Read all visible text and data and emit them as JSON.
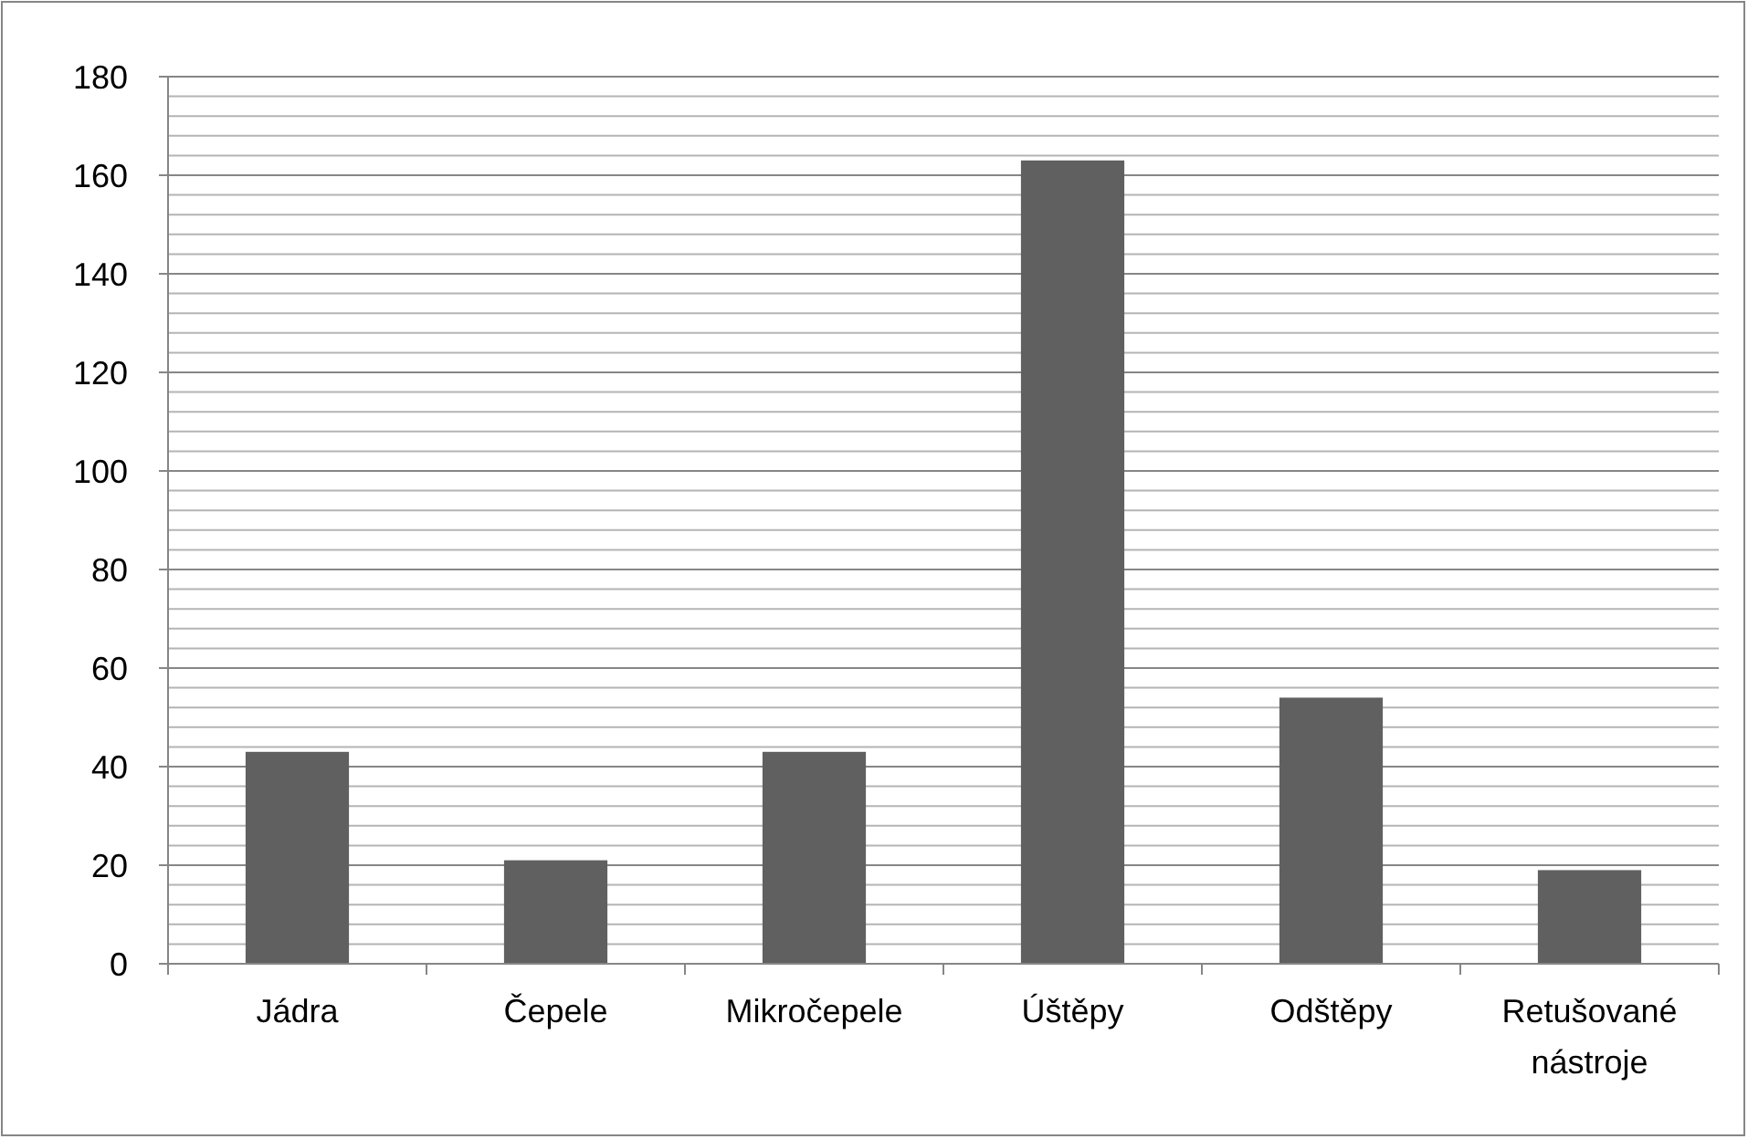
{
  "chart_data": {
    "type": "bar",
    "categories": [
      "Jádra",
      "Čepele",
      "Mikročepele",
      "Úštěpy",
      "Odštěpy",
      "Retušované nástroje"
    ],
    "values": [
      43,
      21,
      43,
      163,
      54,
      19
    ],
    "color": "#606060",
    "ylim": [
      0,
      180
    ],
    "yticks": [
      0,
      {
        "value": 4,
        "label": null
      },
      {
        "value": 8,
        "label": null
      },
      {
        "value": 12,
        "label": null
      },
      {
        "value": 16,
        "label": null
      },
      20,
      {
        "value": 24,
        "label": null
      },
      {
        "value": 28,
        "label": null
      },
      {
        "value": 32,
        "label": null
      },
      {
        "value": 36,
        "label": null
      },
      40,
      {
        "value": 44,
        "label": null
      },
      {
        "value": 48,
        "label": null
      },
      {
        "value": 52,
        "label": null
      },
      {
        "value": 56,
        "label": null
      },
      60,
      {
        "value": 64,
        "label": null
      },
      {
        "value": 68,
        "label": null
      },
      {
        "value": 72,
        "label": null
      },
      {
        "value": 76,
        "label": null
      },
      80,
      {
        "value": 84,
        "label": null
      },
      {
        "value": 88,
        "label": null
      },
      {
        "value": 92,
        "label": null
      },
      {
        "value": 96,
        "label": null
      },
      100,
      {
        "value": 104,
        "label": null
      },
      {
        "value": 108,
        "label": null
      },
      {
        "value": 112,
        "label": null
      },
      {
        "value": 116,
        "label": null
      },
      120,
      {
        "value": 124,
        "label": null
      },
      {
        "value": 128,
        "label": null
      },
      {
        "value": 132,
        "label": null
      },
      {
        "value": 136,
        "label": null
      },
      140,
      {
        "value": 144,
        "label": null
      },
      {
        "value": 148,
        "label": null
      },
      {
        "value": 152,
        "label": null
      },
      {
        "value": 156,
        "label": null
      },
      160,
      {
        "value": 164,
        "label": null
      },
      {
        "value": 168,
        "label": null
      },
      {
        "value": 172,
        "label": null
      },
      {
        "value": 176,
        "label": null
      },
      180
    ],
    "grid": true
  }
}
